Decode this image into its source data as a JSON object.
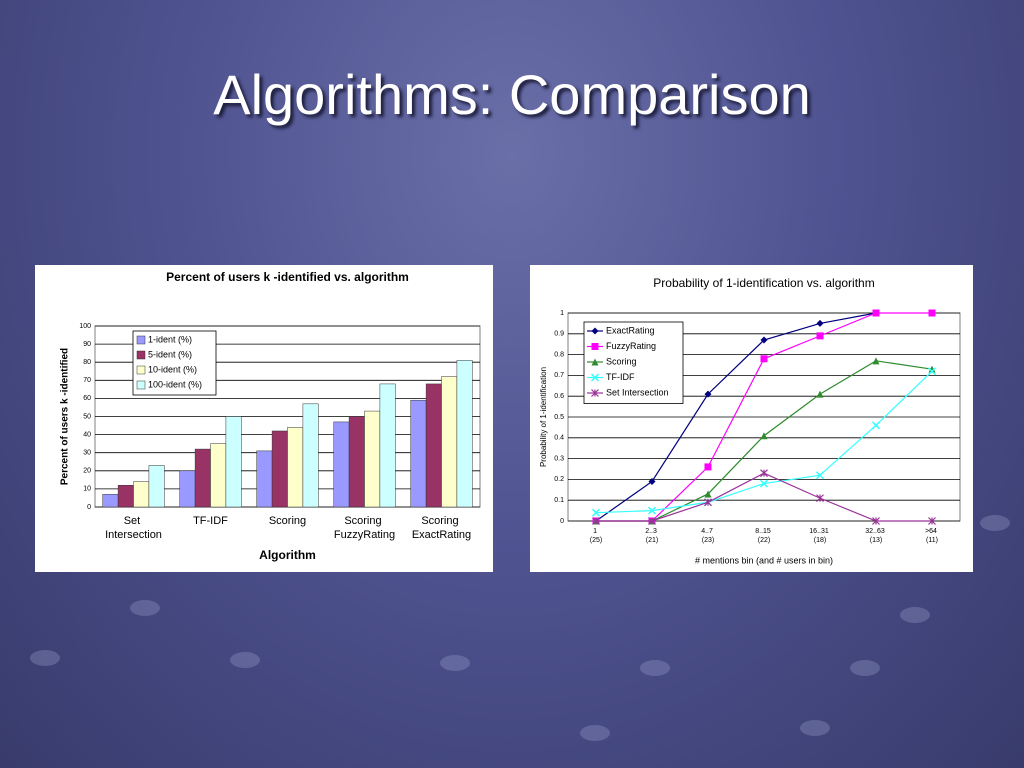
{
  "title": "Algorithms: Comparison",
  "chart_data": [
    {
      "type": "bar",
      "title": "Percent of users k -identified vs. algorithm",
      "x_label": "Algorithm",
      "y_label": "Percent of users k -identified",
      "categories": [
        "Set Intersection",
        "TF-IDF",
        "Scoring",
        "Scoring FuzzyRating",
        "Scoring ExactRating"
      ],
      "series": [
        {
          "name": "1-ident (%)",
          "color": "#9999ff",
          "values": [
            7,
            20,
            31,
            47,
            59
          ]
        },
        {
          "name": "5-ident (%)",
          "color": "#993366",
          "values": [
            12,
            32,
            42,
            50,
            68
          ]
        },
        {
          "name": "10-ident (%)",
          "color": "#ffffcc",
          "values": [
            14,
            35,
            44,
            53,
            72
          ]
        },
        {
          "name": "100-ident (%)",
          "color": "#ccffff",
          "values": [
            23,
            50,
            57,
            68,
            81
          ]
        }
      ],
      "ylim": [
        0,
        100
      ],
      "yticks": [
        0,
        10,
        20,
        30,
        40,
        50,
        60,
        70,
        80,
        90,
        100
      ],
      "grid": true,
      "legend": "upper left"
    },
    {
      "type": "line",
      "title": "Probability of 1-identification vs. algorithm",
      "x_label": "# mentions bin (and # users in bin)",
      "y_label": "Probability of 1-identification",
      "categories": [
        "1 (25)",
        "2..3 (21)",
        "4..7 (23)",
        "8..15 (22)",
        "16..31 (18)",
        "32..63 (13)",
        ">64 (11)"
      ],
      "series": [
        {
          "name": "ExactRating",
          "color": "#000080",
          "marker": "diamond",
          "values": [
            0,
            0.19,
            0.61,
            0.87,
            0.95,
            1,
            null
          ]
        },
        {
          "name": "FuzzyRating",
          "color": "#ff00ff",
          "marker": "square",
          "values": [
            0,
            0,
            0.26,
            0.78,
            0.89,
            1,
            1
          ]
        },
        {
          "name": "Scoring",
          "color": "#2e8b2e",
          "marker": "triangle",
          "values": [
            0,
            0,
            0.13,
            0.41,
            0.61,
            0.77,
            0.73
          ]
        },
        {
          "name": "TF-IDF",
          "color": "#33ffff",
          "marker": "x",
          "values": [
            0.04,
            0.05,
            0.09,
            0.18,
            0.22,
            0.46,
            0.72
          ]
        },
        {
          "name": "Set Intersection",
          "color": "#993399",
          "marker": "star",
          "values": [
            0,
            0,
            0.09,
            0.23,
            0.11,
            0,
            0
          ]
        }
      ],
      "ylim": [
        0,
        1
      ],
      "yticks": [
        0,
        0.1,
        0.2,
        0.3,
        0.4,
        0.5,
        0.6,
        0.7,
        0.8,
        0.9,
        1
      ],
      "grid": true,
      "legend": "upper left"
    }
  ]
}
